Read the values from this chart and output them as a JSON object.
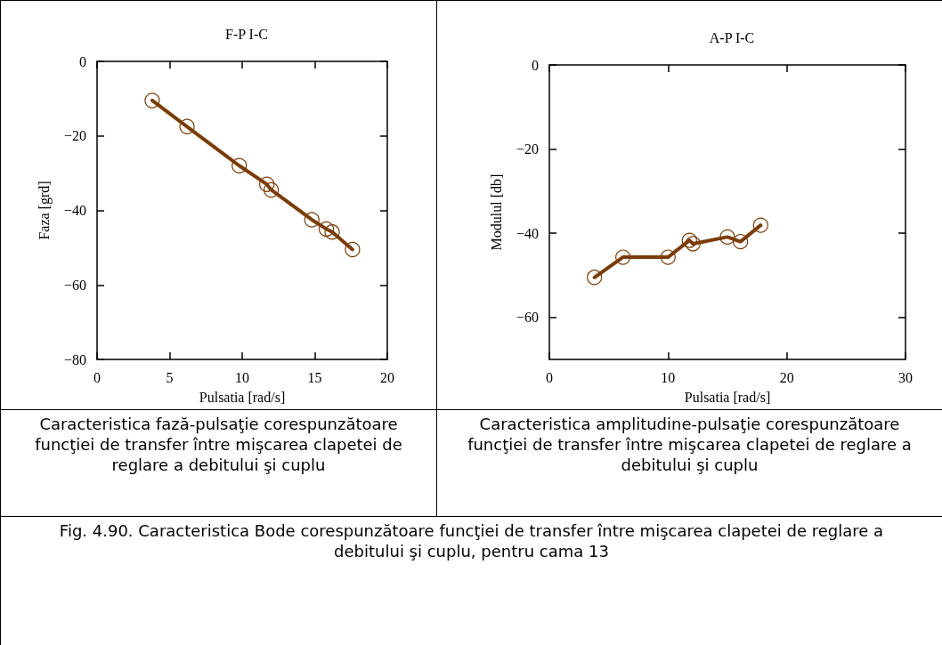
{
  "chart_data": [
    {
      "type": "line",
      "title": "F-P I-C",
      "xlabel": "Pulsatia [rad/s]",
      "ylabel": "Faza [grd]",
      "x": [
        3.8,
        6.2,
        9.8,
        11.7,
        12,
        14.8,
        15.8,
        16.2,
        17.6
      ],
      "series": [
        {
          "color": "#7a3c06",
          "values": [
            -10.5,
            -17.5,
            -28,
            -33,
            -34.5,
            -42.5,
            -45,
            -45.8,
            -50.5
          ]
        }
      ],
      "xlim": [
        0,
        20
      ],
      "xticks": [
        0,
        5,
        10,
        15,
        20
      ],
      "ylim": [
        -80,
        0
      ],
      "yticks": [
        -80,
        -60,
        -40,
        -20,
        0
      ],
      "grid": false,
      "marker": "circle",
      "line_style": "solid",
      "annotations": [
        "Caracteristica fază-pulsaţie corespunzătoare funcţiei de transfer între mişcarea clapetei de reglare a debitului şi cuplu"
      ]
    },
    {
      "type": "line",
      "title": "A-P I-C",
      "xlabel": "Pulsatia [rad/s]",
      "ylabel": "Modulul [db]",
      "x": [
        3.8,
        6.2,
        10,
        11.8,
        12.1,
        15,
        16.1,
        17.8
      ],
      "series": [
        {
          "color": "#7a3c06",
          "values": [
            -50.5,
            -45.7,
            -45.7,
            -41.7,
            -42.5,
            -40.9,
            -42,
            -38.1
          ]
        }
      ],
      "xlim": [
        0,
        30
      ],
      "xticks": [
        0,
        10,
        20,
        30
      ],
      "ylim": [
        -70,
        0
      ],
      "yticks": [
        -60,
        -40,
        -20,
        0
      ],
      "grid": false,
      "marker": "circle",
      "line_style": "solid",
      "annotations": [
        "Caracteristica amplitudine-pulsaţie corespunzătoare funcţiei de transfer între mişcarea clapetei de reglare a debitului şi cuplu",
        "Fig. 4.90. Caracteristica Bode corespunzătoare funcţiei de transfer între mişcarea clapetei de reglare a debitului şi cuplu, pentru cama 13"
      ]
    }
  ]
}
